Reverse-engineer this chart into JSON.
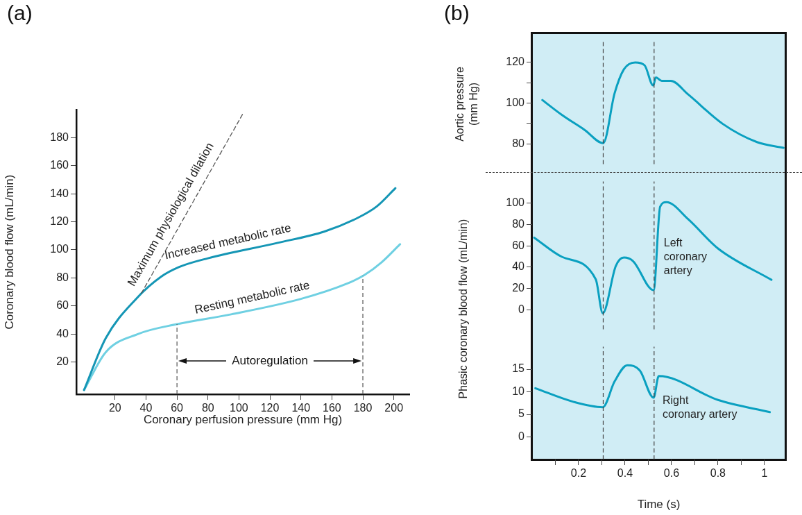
{
  "chart_data": [
    {
      "type": "line",
      "title": "(a)",
      "xlabel": "Coronary perfusion pressure (mm Hg)",
      "ylabel": "Coronary blood flow (mL/min)",
      "xlim": [
        -5,
        210
      ],
      "ylim": [
        -3,
        200
      ],
      "xticks": [
        20,
        40,
        60,
        80,
        100,
        120,
        140,
        160,
        180,
        200
      ],
      "yticks": [
        20,
        40,
        60,
        80,
        100,
        120,
        140,
        160,
        180
      ],
      "grid": false,
      "legend": false,
      "marker": "none",
      "ref_lines": [
        {
          "axis": "x",
          "value": 60,
          "color": "#555555",
          "line_style": "dashed"
        },
        {
          "axis": "x",
          "value": 180,
          "color": "#555555",
          "line_style": "dashed"
        }
      ],
      "annotations": [
        "Autoregulation"
      ],
      "series": [
        {
          "name": "Increased metabolic rate",
          "color": "#1596b5",
          "x": [
            0,
            14,
            33.6,
            50,
            62,
            80,
            125,
            155,
            177,
            189,
            201
          ],
          "values": [
            0,
            37,
            65,
            81,
            88,
            94,
            105,
            113,
            123,
            131,
            144
          ]
        },
        {
          "name": "Resting metabolic rate",
          "color": "#6fd0e2",
          "x": [
            0,
            14,
            35,
            60,
            95,
            140,
            170,
            181,
            192,
            204
          ],
          "values": [
            0,
            27,
            40,
            47,
            54,
            65,
            76,
            82,
            91,
            104
          ]
        },
        {
          "name": "Maximum physiological dilation",
          "color": "#555555",
          "line_style": "dashed",
          "x": [
            37,
            103
          ],
          "values": [
            69,
            198
          ]
        }
      ]
    },
    {
      "type": "line",
      "title": "(b)",
      "ylabel": "Aortic pressure (mm Hg)",
      "xlim": [
        0,
        1.09
      ],
      "ylim": [
        70,
        130
      ],
      "yticks": [
        80,
        {
          "value": 90,
          "label": null
        },
        100,
        {
          "value": 110,
          "label": null
        },
        120
      ],
      "tick_labels": "y",
      "grid": false,
      "legend": false,
      "marker": "none",
      "ref_lines": [
        {
          "axis": "x",
          "value": 0.306,
          "color": "#444444",
          "line_style": "dashed"
        },
        {
          "axis": "x",
          "value": 0.525,
          "color": "#444444",
          "line_style": "dashed"
        }
      ],
      "series": [
        {
          "color": "#0aa0c0",
          "x": [
            0.044,
            0.128,
            0.226,
            0.306,
            0.355,
            0.395,
            0.444,
            0.484,
            0.521,
            0.533,
            0.558,
            0.597,
            0.672,
            0.82,
            0.968,
            1.082
          ],
          "values": [
            101.5,
            94.2,
            86.8,
            80.3,
            104.8,
            116.6,
            120,
            118.6,
            108.7,
            112.6,
            110.9,
            110.9,
            104.2,
            89.8,
            80.8,
            78
          ]
        }
      ]
    },
    {
      "type": "line",
      "ylabel": "Phasic coronary blood flow (mL/min)",
      "xlim": [
        0,
        1.09
      ],
      "ylim": [
        -18,
        120
      ],
      "yticks": [
        0,
        20,
        40,
        60,
        80,
        100
      ],
      "tick_labels": "y",
      "grid": false,
      "legend": false,
      "marker": "none",
      "ref_lines": [
        {
          "axis": "x",
          "value": 0.306,
          "color": "#444444",
          "line_style": "dashed"
        },
        {
          "axis": "x",
          "value": 0.525,
          "color": "#444444",
          "line_style": "dashed"
        }
      ],
      "series": [
        {
          "name": "Left coronary artery",
          "color": "#0aa0c0",
          "x": [
            0.009,
            0.128,
            0.274,
            0.304,
            0.36,
            0.395,
            0.434,
            0.523,
            0.551,
            0.578,
            0.672,
            0.8,
            1.03
          ],
          "values": [
            67.6,
            49.7,
            28.6,
            -3,
            41,
            49,
            45.8,
            18.5,
            96.5,
            100.8,
            84.8,
            57.5,
            28.2
          ]
        }
      ]
    },
    {
      "type": "line",
      "xlabel": "Time (s)",
      "xlim": [
        0,
        1.09
      ],
      "ylim": [
        -5,
        20
      ],
      "xticks": [
        {
          "value": 0.1,
          "label": null
        },
        0.2,
        {
          "value": 0.3,
          "label": null
        },
        0.4,
        {
          "value": 0.5,
          "label": null
        },
        0.6,
        {
          "value": 0.7,
          "label": null
        },
        0.8,
        {
          "value": 0.9,
          "label": null
        },
        1
      ],
      "yticks": [
        0,
        5,
        10,
        15
      ],
      "grid": false,
      "legend": false,
      "marker": "none",
      "ref_lines": [
        {
          "axis": "x",
          "value": 0.306,
          "color": "#444444",
          "line_style": "dashed"
        },
        {
          "axis": "x",
          "value": 0.525,
          "color": "#444444",
          "line_style": "dashed"
        }
      ],
      "series": [
        {
          "name": "Right coronary artery",
          "color": "#0aa0c0",
          "x": [
            0.014,
            0.177,
            0.304,
            0.355,
            0.41,
            0.464,
            0.523,
            0.545,
            0.8,
            1.023
          ],
          "values": [
            10.8,
            7.8,
            6.6,
            12.3,
            15.9,
            14.7,
            8.7,
            13.5,
            8.2,
            5.5
          ]
        }
      ]
    }
  ]
}
